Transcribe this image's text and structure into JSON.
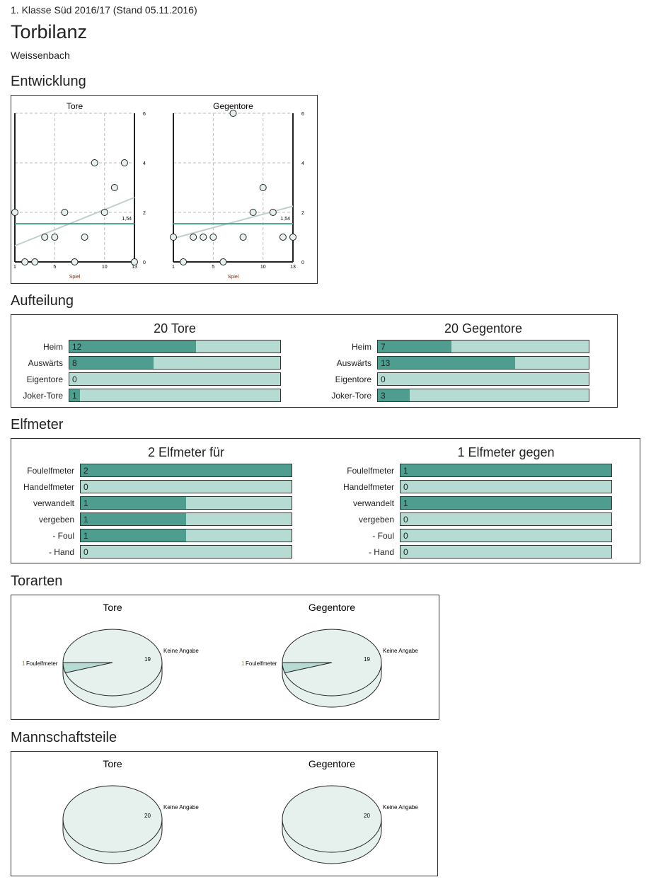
{
  "header": {
    "league": "1. Klasse Süd 2016/17 (Stand 05.11.2016)",
    "title": "Torbilanz",
    "team": "Weissenbach"
  },
  "sections": {
    "entwicklung": "Entwicklung",
    "aufteilung": "Aufteilung",
    "elfmeter": "Elfmeter",
    "torarten": "Torarten",
    "mannschaftsteile": "Mannschaftsteile"
  },
  "colors": {
    "dark": "#4e9d8f",
    "light": "#b5dbd2",
    "pie": "#e6f0ec",
    "trend": "#bfcfcf"
  },
  "chart_data": [
    {
      "type": "scatter",
      "title": "Tore",
      "xlabel": "Spiel",
      "x": [
        1,
        2,
        3,
        4,
        5,
        6,
        7,
        8,
        9,
        10,
        11,
        12,
        13
      ],
      "y": [
        2,
        0,
        0,
        1,
        1,
        2,
        0,
        1,
        4,
        2,
        3,
        4,
        0
      ],
      "xticks": [
        "1",
        "5",
        "10",
        "13"
      ],
      "yticks": [
        "0",
        "2",
        "4",
        "6"
      ],
      "ylim": [
        0,
        6
      ],
      "average": 1.54,
      "average_label": "1,54",
      "trend": [
        0.65,
        2.6
      ]
    },
    {
      "type": "scatter",
      "title": "Gegentore",
      "xlabel": "Spiel",
      "x": [
        1,
        2,
        3,
        4,
        5,
        6,
        7,
        8,
        9,
        10,
        11,
        12,
        13
      ],
      "y": [
        1,
        0,
        1,
        1,
        1,
        0,
        6,
        1,
        2,
        3,
        2,
        1,
        1
      ],
      "xticks": [
        "1",
        "5",
        "10",
        "13"
      ],
      "yticks": [
        "0",
        "2",
        "4",
        "6"
      ],
      "ylim": [
        0,
        6
      ],
      "average": 1.54,
      "average_label": "1,54",
      "trend": [
        0.95,
        2.25
      ]
    },
    {
      "type": "pie",
      "section": "torarten",
      "title": "Tore",
      "slices": [
        {
          "label": "Keine Angabe",
          "value": 19,
          "value_label": "19"
        },
        {
          "label": "Foulelfmeter",
          "value": 1,
          "value_label": "1"
        }
      ]
    },
    {
      "type": "pie",
      "section": "torarten",
      "title": "Gegentore",
      "slices": [
        {
          "label": "Keine Angabe",
          "value": 19,
          "value_label": "19"
        },
        {
          "label": "Foulelfmeter",
          "value": 1,
          "value_label": "1"
        }
      ]
    },
    {
      "type": "pie",
      "section": "mannschaftsteile",
      "title": "Tore",
      "slices": [
        {
          "label": "Keine Angabe",
          "value": 20,
          "value_label": "20"
        }
      ]
    },
    {
      "type": "pie",
      "section": "mannschaftsteile",
      "title": "Gegentore",
      "slices": [
        {
          "label": "Keine Angabe",
          "value": 20,
          "value_label": "20"
        }
      ]
    }
  ],
  "aufteilung": [
    {
      "title": "20 Tore",
      "max": 20,
      "rows": [
        {
          "label": "Heim",
          "value": 12
        },
        {
          "label": "Auswärts",
          "value": 8
        },
        {
          "label": "Eigentore",
          "value": 0
        },
        {
          "label": "Joker-Tore",
          "value": 1
        }
      ]
    },
    {
      "title": "20 Gegentore",
      "max": 20,
      "rows": [
        {
          "label": "Heim",
          "value": 7
        },
        {
          "label": "Auswärts",
          "value": 13
        },
        {
          "label": "Eigentore",
          "value": 0
        },
        {
          "label": "Joker-Tore",
          "value": 3
        }
      ]
    }
  ],
  "elfmeter": [
    {
      "title": "2 Elfmeter für",
      "max": 2,
      "rows": [
        {
          "label": "Foulelfmeter",
          "value": 2
        },
        {
          "label": "Handelfmeter",
          "value": 0
        },
        {
          "label": "verwandelt",
          "value": 1
        },
        {
          "label": "vergeben",
          "value": 1
        },
        {
          "label": "- Foul",
          "value": 1
        },
        {
          "label": "- Hand",
          "value": 0
        }
      ]
    },
    {
      "title": "1 Elfmeter gegen",
      "max": 1,
      "rows": [
        {
          "label": "Foulelfmeter",
          "value": 1
        },
        {
          "label": "Handelfmeter",
          "value": 0
        },
        {
          "label": "verwandelt",
          "value": 1
        },
        {
          "label": "vergeben",
          "value": 0
        },
        {
          "label": "- Foul",
          "value": 0
        },
        {
          "label": "- Hand",
          "value": 0
        }
      ]
    }
  ]
}
